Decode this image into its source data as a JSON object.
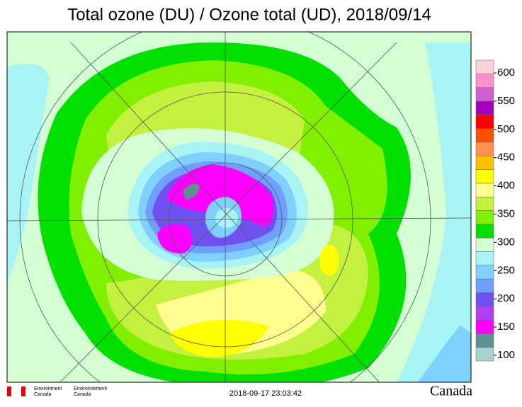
{
  "title": "Total ozone (DU) / Ozone total (UD), 2018/09/14",
  "colorbar": {
    "ticks": [
      100,
      150,
      200,
      250,
      300,
      350,
      400,
      450,
      500,
      550,
      600
    ],
    "colors": [
      "#a6d2d2",
      "#5f9090",
      "#ff00ff",
      "#b040f0",
      "#7050f0",
      "#6f9fff",
      "#80d0ff",
      "#a8f4f4",
      "#d4ffd4",
      "#00e000",
      "#80f000",
      "#c4f040",
      "#ffff90",
      "#ffff00",
      "#ffc000",
      "#ff9050",
      "#ff5000",
      "#ff0000",
      "#a000c0",
      "#d060d0",
      "#ff90d0",
      "#ffd0d8"
    ]
  },
  "footer": {
    "agency_en": [
      "Environment",
      "Canada"
    ],
    "agency_fr": [
      "Environnement",
      "Canada"
    ],
    "timestamp": "2018-09-17 23:03:42",
    "wordmark": "Canada"
  }
}
